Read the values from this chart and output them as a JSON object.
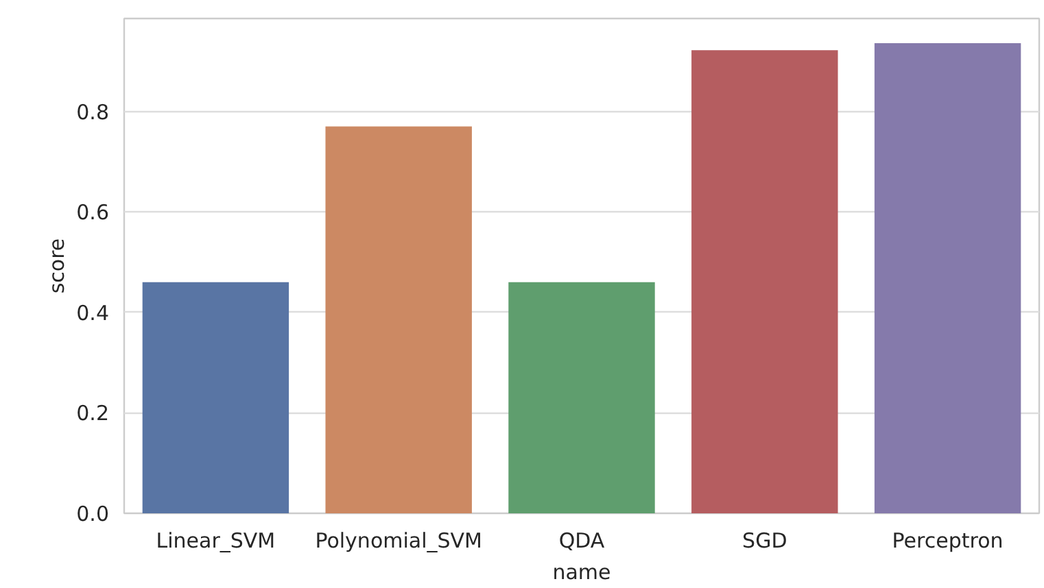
{
  "chart_data": {
    "type": "bar",
    "xlabel": "name",
    "ylabel": "score",
    "categories": [
      "Linear_SVM",
      "Polynomial_SVM",
      "QDA",
      "SGD",
      "Perceptron"
    ],
    "values": [
      0.46,
      0.77,
      0.46,
      0.922,
      0.936
    ],
    "colors": [
      "#5975a4",
      "#cc8963",
      "#5f9e6e",
      "#b55d60",
      "#857aab"
    ],
    "ylim": [
      0,
      0.985
    ],
    "yticks": [
      {
        "value": 0,
        "label": "0.0"
      },
      {
        "value": 0.2,
        "label": "0.2"
      },
      {
        "value": 0.4,
        "label": "0.4"
      },
      {
        "value": 0.6,
        "label": "0.6"
      },
      {
        "value": 0.8,
        "label": "0.8"
      }
    ],
    "grid": "y"
  }
}
